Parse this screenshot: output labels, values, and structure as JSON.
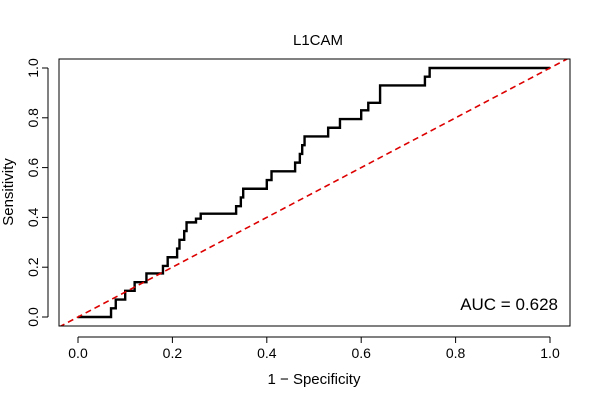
{
  "chart_data": {
    "type": "line",
    "title": "L1CAM",
    "xlabel": "1 − Specificity",
    "ylabel": "Sensitivity",
    "xlim": [
      0.0,
      1.0
    ],
    "ylim": [
      0.0,
      1.0
    ],
    "xticks": [
      "0.0",
      "0.2",
      "0.4",
      "0.6",
      "0.8",
      "1.0"
    ],
    "yticks": [
      "0.0",
      "0.2",
      "0.4",
      "0.6",
      "0.8",
      "1.0"
    ],
    "grid": false,
    "legend": "none",
    "annotation": "AUC = 0.628",
    "series": [
      {
        "color": "#000000",
        "style": "solid",
        "x": [
          0.0,
          0.07,
          0.07,
          0.08,
          0.08,
          0.1,
          0.1,
          0.12,
          0.12,
          0.145,
          0.145,
          0.18,
          0.18,
          0.19,
          0.19,
          0.21,
          0.21,
          0.215,
          0.215,
          0.225,
          0.225,
          0.23,
          0.23,
          0.25,
          0.25,
          0.26,
          0.26,
          0.335,
          0.335,
          0.345,
          0.345,
          0.35,
          0.35,
          0.4,
          0.4,
          0.41,
          0.41,
          0.46,
          0.46,
          0.47,
          0.47,
          0.475,
          0.475,
          0.48,
          0.48,
          0.53,
          0.53,
          0.555,
          0.555,
          0.6,
          0.6,
          0.615,
          0.615,
          0.64,
          0.64,
          0.735,
          0.735,
          0.745,
          0.745,
          1.0
        ],
        "y": [
          0.0,
          0.0,
          0.035,
          0.035,
          0.07,
          0.07,
          0.105,
          0.105,
          0.14,
          0.14,
          0.175,
          0.175,
          0.205,
          0.205,
          0.24,
          0.24,
          0.275,
          0.275,
          0.31,
          0.31,
          0.345,
          0.345,
          0.38,
          0.38,
          0.395,
          0.395,
          0.415,
          0.415,
          0.445,
          0.445,
          0.48,
          0.48,
          0.515,
          0.515,
          0.55,
          0.55,
          0.585,
          0.585,
          0.62,
          0.62,
          0.655,
          0.655,
          0.69,
          0.69,
          0.725,
          0.725,
          0.76,
          0.76,
          0.795,
          0.795,
          0.83,
          0.83,
          0.86,
          0.86,
          0.93,
          0.93,
          0.965,
          0.965,
          1.0,
          1.0
        ]
      },
      {
        "color": "#dd0000",
        "style": "dashed",
        "x": [
          -0.04,
          1.04
        ],
        "y": [
          -0.04,
          1.04
        ]
      }
    ]
  }
}
